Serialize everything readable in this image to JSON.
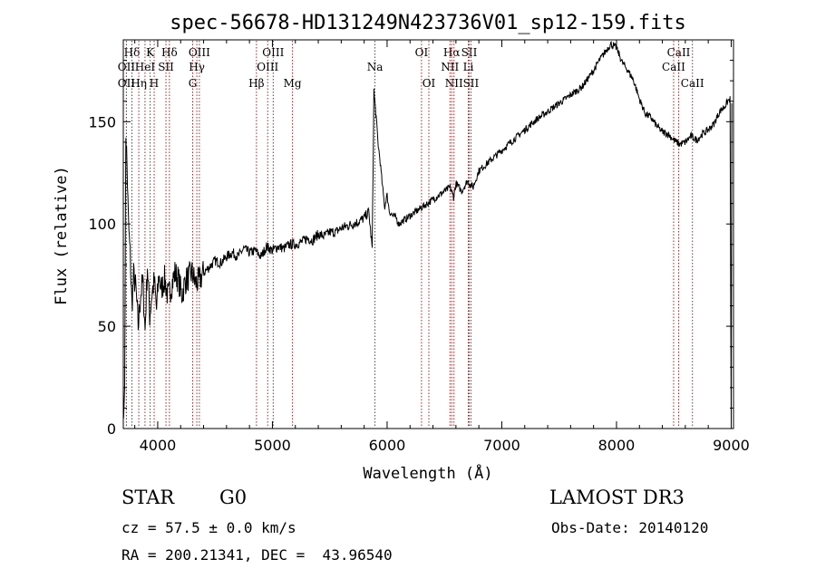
{
  "footer": {
    "class_label": "STAR",
    "subclass_label": "G0",
    "survey": "LAMOST DR3",
    "cz": "cz = 57.5 ± 0.0 km/s",
    "obs_date": "Obs-Date: 20140120",
    "coords": "RA = 200.21341, DEC =  43.96540"
  },
  "chart_data": {
    "type": "line",
    "title": "spec-56678-HD131249N423736V01_sp12-159.fits",
    "xlabel": "Wavelength (Å)",
    "ylabel": "Flux (relative)",
    "xlim": [
      3700,
      9020
    ],
    "ylim": [
      0,
      190
    ],
    "x_ticks": [
      4000,
      5000,
      6000,
      7000,
      8000,
      9000
    ],
    "y_ticks": [
      0,
      50,
      100,
      150
    ],
    "grid": false,
    "colors": {
      "spectrum": "#000000",
      "lines": "#b22222"
    },
    "series": [
      {
        "x": [
          3702,
          3712,
          3722,
          3732,
          3745,
          3760,
          3775,
          3790,
          3810,
          3830,
          3850,
          3870,
          3890,
          3910,
          3930,
          3950,
          3970,
          3990,
          4010,
          4030,
          4060,
          4090,
          4120,
          4150,
          4180,
          4210,
          4240,
          4270,
          4300,
          4330,
          4360,
          4400,
          4450,
          4500,
          4550,
          4600,
          4650,
          4700,
          4750,
          4800,
          4850,
          4900,
          4950,
          5000,
          5050,
          5100,
          5150,
          5200,
          5250,
          5300,
          5350,
          5400,
          5450,
          5500,
          5550,
          5600,
          5650,
          5700,
          5750,
          5800,
          5840,
          5870,
          5885,
          5895,
          5905,
          5920,
          5940,
          5960,
          5980,
          5990,
          6000,
          6020,
          6050,
          6080,
          6100,
          6150,
          6200,
          6250,
          6300,
          6350,
          6400,
          6450,
          6500,
          6550,
          6580,
          6600,
          6650,
          6700,
          6750,
          6800,
          6900,
          7000,
          7100,
          7200,
          7300,
          7400,
          7500,
          7600,
          7700,
          7750,
          7800,
          7850,
          7900,
          7950,
          8000,
          8050,
          8100,
          8150,
          8200,
          8250,
          8300,
          8350,
          8400,
          8450,
          8500,
          8550,
          8600,
          8650,
          8700,
          8750,
          8800,
          8850,
          8900,
          8950,
          8970,
          8990,
          9000,
          9005
        ],
        "y": [
          5,
          20,
          145,
          130,
          100,
          85,
          60,
          75,
          68,
          50,
          65,
          72,
          48,
          80,
          55,
          66,
          72,
          58,
          75,
          68,
          73,
          64,
          70,
          76,
          73,
          65,
          72,
          74,
          76,
          71,
          72,
          76,
          79,
          82,
          81,
          84,
          86,
          84,
          88,
          86,
          87,
          84,
          89,
          87,
          89,
          88,
          90,
          90,
          91,
          93,
          92,
          95,
          94,
          96,
          96,
          98,
          99,
          100,
          101,
          103,
          106,
          88,
          165,
          158,
          152,
          140,
          130,
          118,
          108,
          112,
          114,
          106,
          104,
          103,
          100,
          102,
          104,
          106,
          108,
          110,
          112,
          114,
          116,
          118,
          113,
          120,
          116,
          121,
          118,
          126,
          131,
          136,
          141,
          146,
          151,
          155,
          159,
          163,
          167,
          171,
          175,
          180,
          184,
          188,
          186,
          179,
          175,
          170,
          161,
          154,
          152,
          148,
          145,
          144,
          141,
          139,
          140,
          143,
          141,
          144,
          146,
          149,
          155,
          158,
          160,
          161,
          3,
          159
        ]
      }
    ],
    "spectral_lines": [
      {
        "name": "Hδ",
        "wavelength": 3775,
        "row": 1
      },
      {
        "name": "OII",
        "wavelength": 3727,
        "row": 2
      },
      {
        "name": "OII",
        "wavelength": 3727,
        "row": 3
      },
      {
        "name": "K",
        "wavelength": 3934,
        "row": 1
      },
      {
        "name": "HeI",
        "wavelength": 3889,
        "row": 2
      },
      {
        "name": "Hη",
        "wavelength": 3835,
        "row": 3
      },
      {
        "name": "Hδ",
        "wavelength": 4102,
        "row": 1
      },
      {
        "name": "SII",
        "wavelength": 4072,
        "row": 2
      },
      {
        "name": "H",
        "wavelength": 3969,
        "row": 3
      },
      {
        "name": "OIII",
        "wavelength": 4363,
        "row": 1
      },
      {
        "name": "Hγ",
        "wavelength": 4341,
        "row": 2
      },
      {
        "name": "G",
        "wavelength": 4305,
        "row": 3
      },
      {
        "name": "OIII",
        "wavelength": 5007,
        "row": 1
      },
      {
        "name": "OIII",
        "wavelength": 4959,
        "row": 2
      },
      {
        "name": "Hβ",
        "wavelength": 4861,
        "row": 3
      },
      {
        "name": "Mg",
        "wavelength": 5175,
        "row": 3
      },
      {
        "name": "Na",
        "wavelength": 5894,
        "row": 2
      },
      {
        "name": "OI",
        "wavelength": 6300,
        "row": 1
      },
      {
        "name": "OI",
        "wavelength": 6364,
        "row": 3
      },
      {
        "name": "Hα",
        "wavelength": 6563,
        "row": 1
      },
      {
        "name": "SII",
        "wavelength": 6716,
        "row": 1
      },
      {
        "name": "NII",
        "wavelength": 6548,
        "row": 2
      },
      {
        "name": "Li",
        "wavelength": 6708,
        "row": 2
      },
      {
        "name": "NII",
        "wavelength": 6583,
        "row": 3
      },
      {
        "name": "SII",
        "wavelength": 6731,
        "row": 3
      },
      {
        "name": "CaII",
        "wavelength": 8542,
        "row": 1
      },
      {
        "name": "CaII",
        "wavelength": 8498,
        "row": 2
      },
      {
        "name": "CaII",
        "wavelength": 8662,
        "row": 3
      }
    ]
  }
}
